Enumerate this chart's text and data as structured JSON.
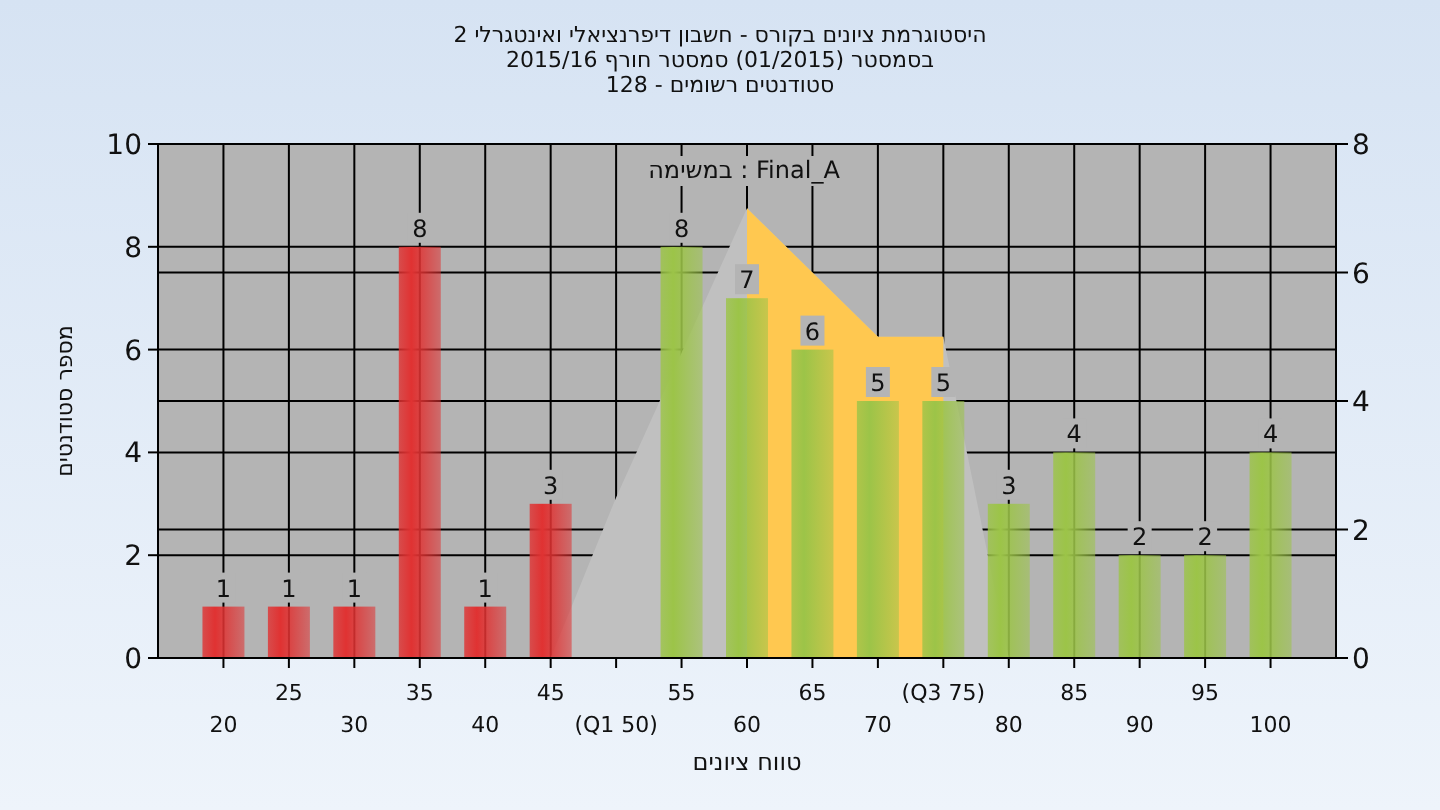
{
  "chart_data": {
    "type": "bar",
    "title": "היסטוגרמת ציונים בקורס - חשבון דיפרנציאלי ואינטגרלי 2",
    "subtitle": "בסמסטר (01/2015) סמסטר חורף 2015/16\nסטודנטים רשומים - 128",
    "xlabel": "טווח ציונים",
    "ylabel": "מספר סטודנטים",
    "annotations": [
      "במשימה : Final_A"
    ],
    "categories": [
      "20",
      "25",
      "30",
      "35",
      "40",
      "45",
      "(Q1 50)",
      "55",
      "60",
      "65",
      "70",
      "(Q3 75)",
      "80",
      "85",
      "90",
      "95",
      "100"
    ],
    "series": [
      {
        "type": "area",
        "axis": "y2",
        "color": "#c0c0c0",
        "values": [
          null,
          null,
          null,
          null,
          null,
          0,
          2.5,
          null,
          7,
          6,
          5,
          5,
          0,
          null,
          null,
          null,
          null
        ]
      },
      {
        "type": "area",
        "axis": "y2",
        "color": "#ffc850",
        "values": [
          null,
          null,
          null,
          null,
          null,
          null,
          null,
          null,
          7,
          6,
          5,
          5,
          null,
          null,
          null,
          null,
          null
        ]
      },
      {
        "colors": [
          "#e03232",
          "#e03232",
          "#e03232",
          "#e03232",
          "#e03232",
          "#e03232",
          "#e03232",
          "#9cc448",
          "#9cc448",
          "#9cc448",
          "#9cc448",
          "#9cc448",
          "#9cc448",
          "#9cc448",
          "#9cc448",
          "#9cc448",
          "#9cc448"
        ],
        "values": [
          1,
          1,
          1,
          8,
          1,
          3,
          0,
          8,
          7,
          6,
          5,
          5,
          3,
          4,
          2,
          2,
          4
        ],
        "value_labels": [
          "1",
          "1",
          "1",
          "8",
          "1",
          "3",
          null,
          "8",
          "7",
          "6",
          "5",
          "5",
          "3",
          "4",
          "2",
          "2",
          "4"
        ]
      }
    ],
    "ylim": [
      0,
      10
    ],
    "yticks": [
      0,
      2,
      4,
      6,
      8,
      10
    ],
    "y2lim": [
      0,
      8
    ],
    "y2ticks": [
      0,
      2,
      4,
      6,
      8
    ],
    "grid": true
  }
}
